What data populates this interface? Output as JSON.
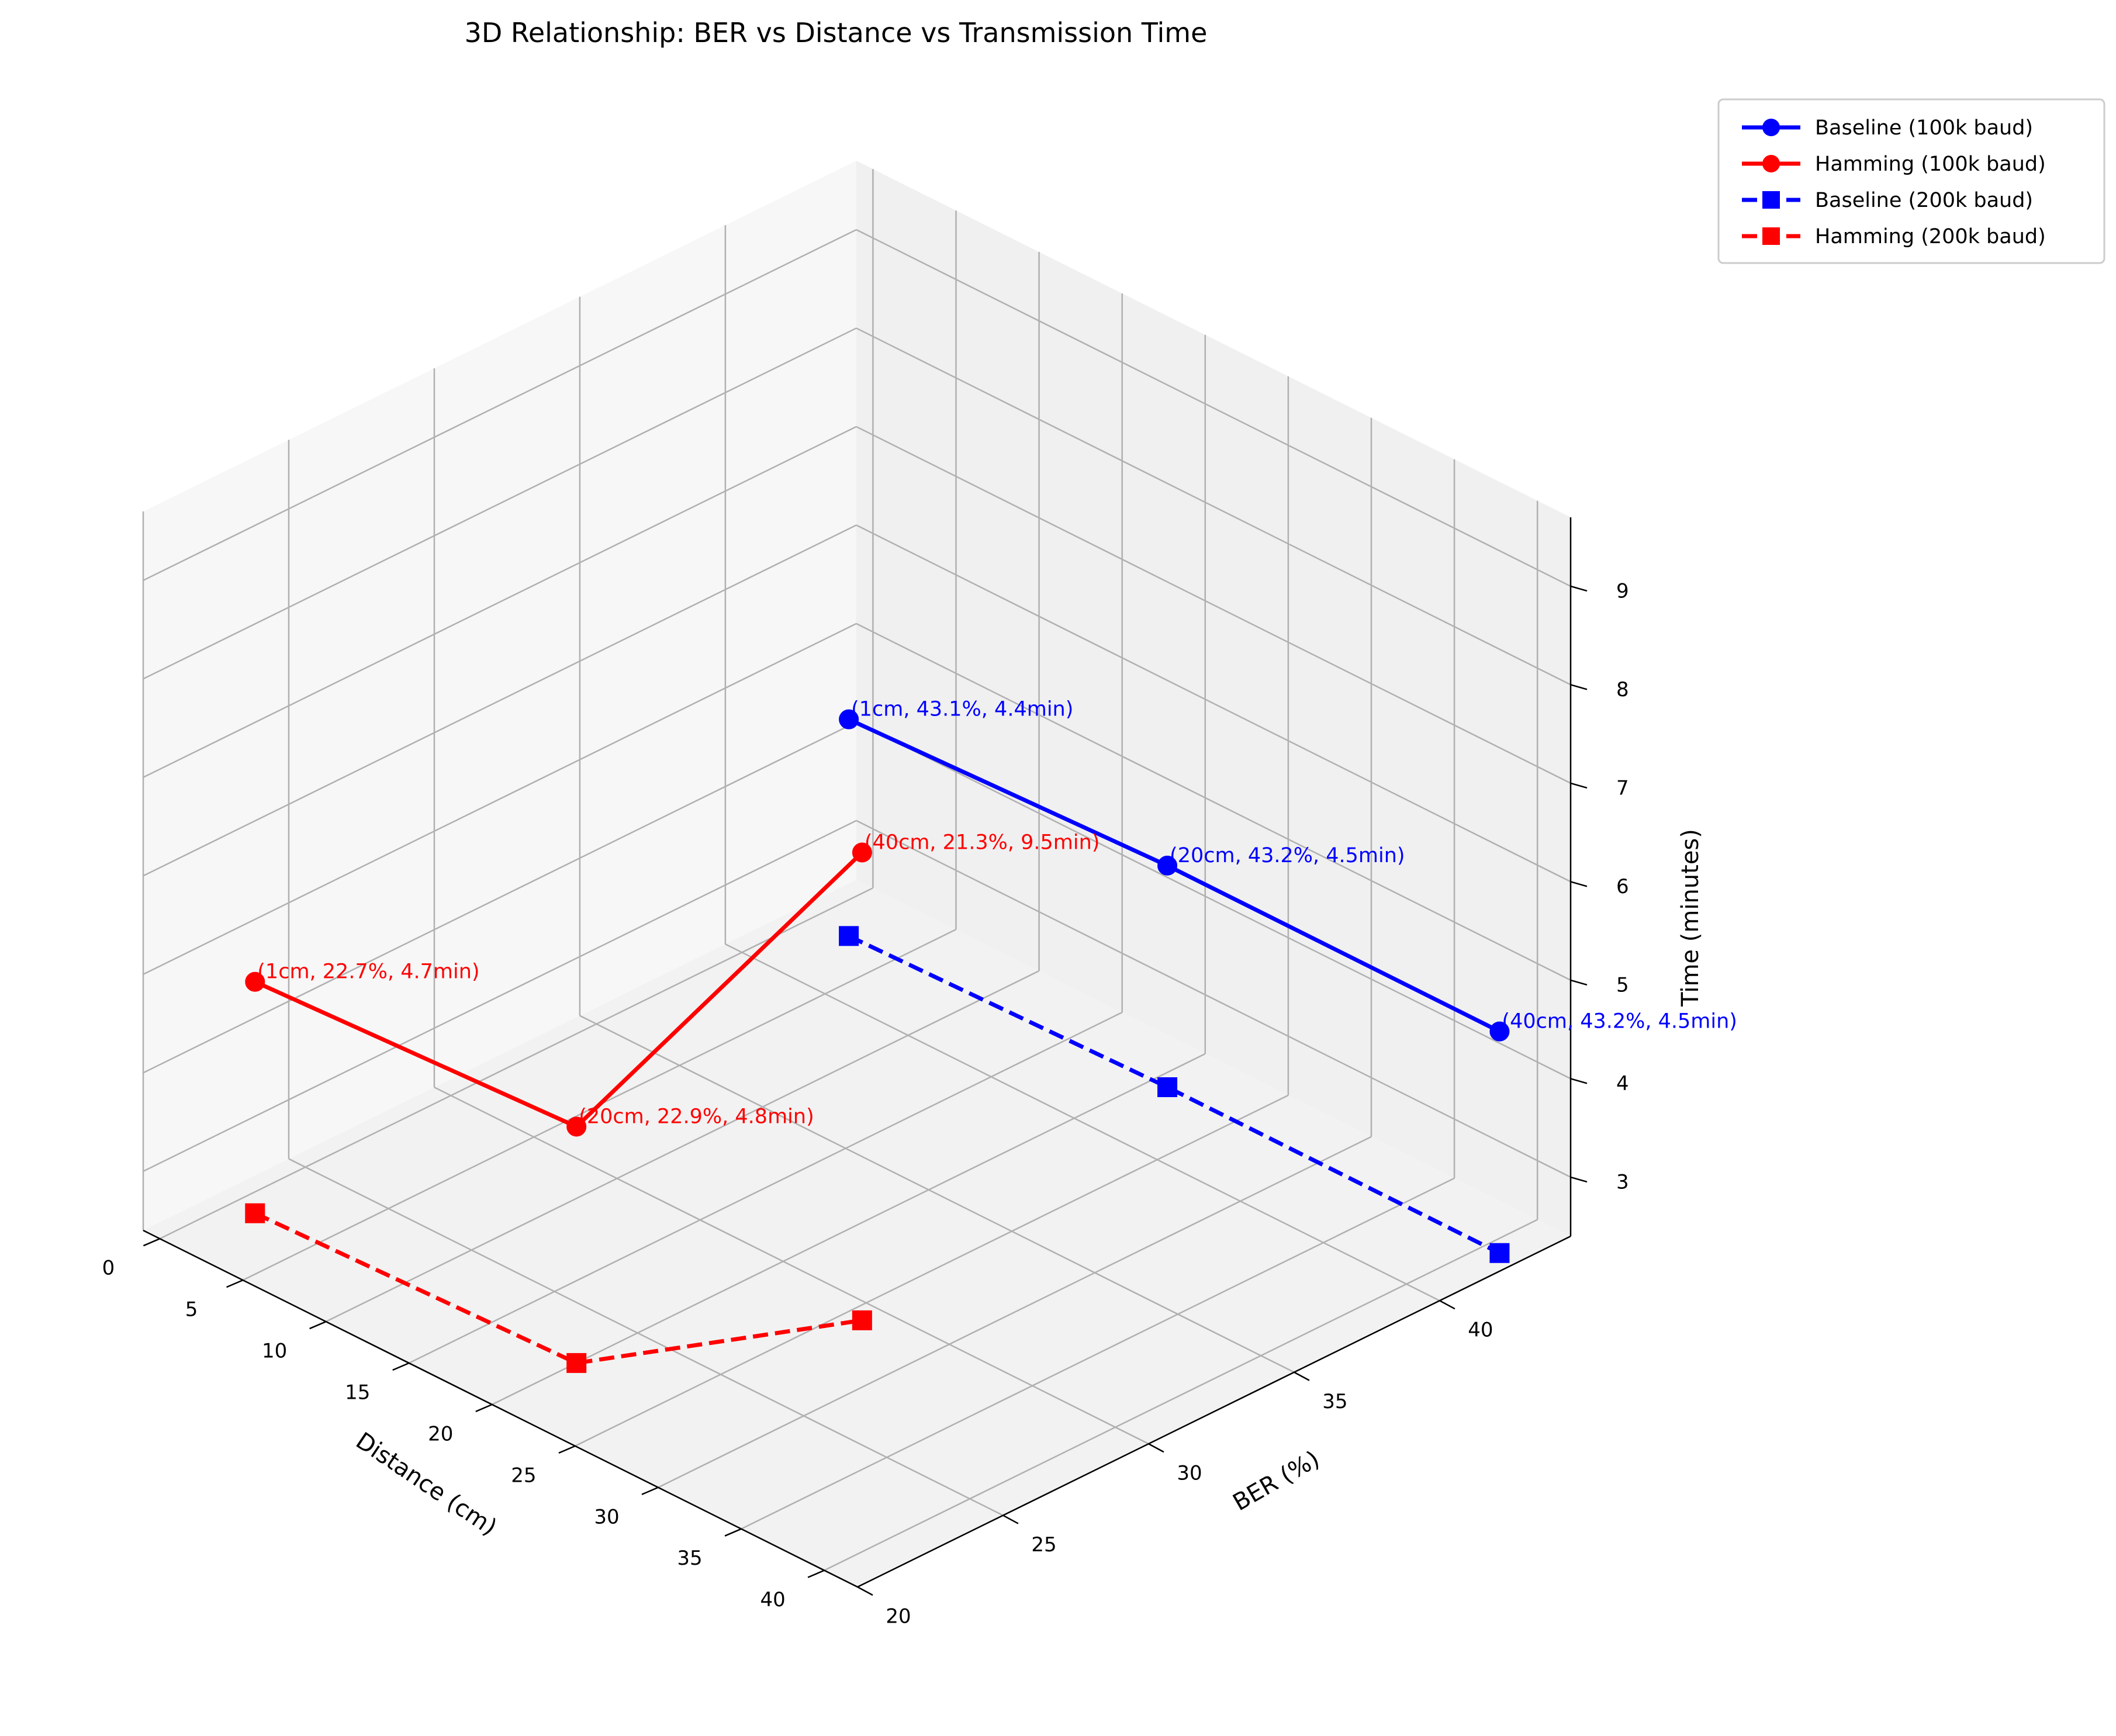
{
  "chart_data": {
    "type": "line",
    "subtype": "3d-line",
    "title": "3D Relationship: BER vs Distance vs Transmission Time",
    "xlabel": "Distance (cm)",
    "ylabel": "BER (%)",
    "zlabel": "Time (minutes)",
    "xlim": [
      -1,
      42
    ],
    "ylim": [
      20,
      44.5
    ],
    "zlim": [
      2.4,
      9.7
    ],
    "xticks": [
      "0",
      "5",
      "10",
      "15",
      "20",
      "25",
      "30",
      "35",
      "40"
    ],
    "yticks": [
      "20",
      "25",
      "30",
      "35",
      "40"
    ],
    "zticks": [
      "3",
      "4",
      "5",
      "6",
      "7",
      "8",
      "9"
    ],
    "grid": true,
    "legend_position": "outside top-right",
    "series": [
      {
        "name": "Baseline (100k baud)",
        "color": "#0000ff",
        "marker": "circle",
        "linestyle": "solid",
        "points": [
          {
            "x": 1,
            "y": 43.1,
            "z": 4.4
          },
          {
            "x": 20,
            "y": 43.2,
            "z": 4.5
          },
          {
            "x": 40,
            "y": 43.2,
            "z": 4.5
          }
        ]
      },
      {
        "name": "Hamming (100k baud)",
        "color": "#ff0000",
        "marker": "circle",
        "linestyle": "solid",
        "points": [
          {
            "x": 1,
            "y": 22.7,
            "z": 4.7
          },
          {
            "x": 20,
            "y": 22.9,
            "z": 4.8
          },
          {
            "x": 40,
            "y": 21.3,
            "z": 9.5
          }
        ]
      },
      {
        "name": "Baseline (200k baud)",
        "color": "#0000ff",
        "marker": "square",
        "linestyle": "dashed",
        "points": [
          {
            "x": 1,
            "y": 43.1,
            "z": 2.2
          },
          {
            "x": 20,
            "y": 43.2,
            "z": 2.25
          },
          {
            "x": 40,
            "y": 43.2,
            "z": 2.25
          }
        ]
      },
      {
        "name": "Hamming (200k baud)",
        "color": "#ff0000",
        "marker": "square",
        "linestyle": "dashed",
        "points": [
          {
            "x": 1,
            "y": 22.7,
            "z": 2.35
          },
          {
            "x": 20,
            "y": 22.9,
            "z": 2.4
          },
          {
            "x": 40,
            "y": 21.3,
            "z": 4.75
          }
        ]
      }
    ],
    "annotations": [
      {
        "text": "(1cm, 43.1%, 4.4min)",
        "color": "#0000ff",
        "series": 0,
        "point": 0
      },
      {
        "text": "(20cm, 43.2%, 4.5min)",
        "color": "#0000ff",
        "series": 0,
        "point": 1
      },
      {
        "text": "(40cm, 43.2%, 4.5min)",
        "color": "#0000ff",
        "series": 0,
        "point": 2
      },
      {
        "text": "(1cm, 22.7%, 4.7min)",
        "color": "#ff0000",
        "series": 1,
        "point": 0
      },
      {
        "text": "(20cm, 22.9%, 4.8min)",
        "color": "#ff0000",
        "series": 1,
        "point": 1
      },
      {
        "text": "(40cm, 21.3%, 9.5min)",
        "color": "#ff0000",
        "series": 1,
        "point": 2
      }
    ]
  }
}
